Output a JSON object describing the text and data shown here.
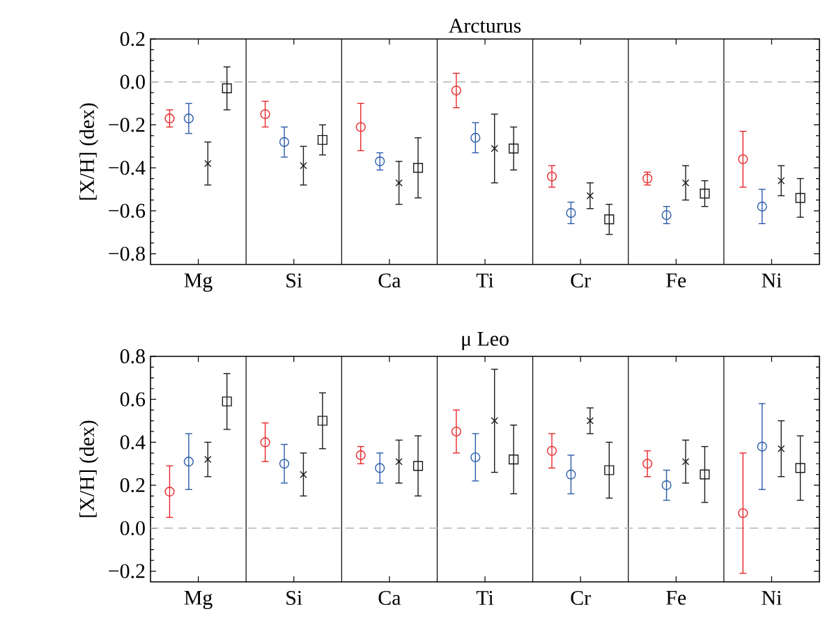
{
  "chart_data": [
    {
      "type": "scatter",
      "title": "Arcturus",
      "ylabel": "[X/H] (dex)",
      "categories": [
        "Mg",
        "Si",
        "Ca",
        "Ti",
        "Cr",
        "Fe",
        "Ni"
      ],
      "ylim": [
        -0.85,
        0.2
      ],
      "yticks": [
        {
          "value": 0.2,
          "label": "0.2"
        },
        {
          "value": 0,
          "label": "0.0"
        },
        {
          "value": -0.2,
          "label": "−0.2"
        },
        {
          "value": -0.4,
          "label": "−0.4"
        },
        {
          "value": -0.6,
          "label": "−0.6"
        },
        {
          "value": -0.8,
          "label": "−0.8"
        }
      ],
      "grid": "x",
      "ref_lines": [
        {
          "axis": "y",
          "value": 0,
          "color": "#b4b4b4",
          "line_style": "dashed"
        }
      ],
      "series": [
        {
          "color": "#e8262a",
          "marker": "circle",
          "values": [
            -0.17,
            -0.15,
            -0.21,
            -0.04,
            -0.44,
            -0.45,
            -0.36
          ],
          "errors": [
            0.04,
            0.06,
            0.11,
            0.08,
            0.05,
            0.03,
            0.13
          ]
        },
        {
          "color": "#2a5caa",
          "marker": "circle",
          "values": [
            -0.17,
            -0.28,
            -0.37,
            -0.26,
            -0.61,
            -0.62,
            -0.58
          ],
          "errors": [
            0.07,
            0.07,
            0.04,
            0.07,
            0.05,
            0.04,
            0.08
          ]
        },
        {
          "color": "#1a1a1a",
          "marker": "cross",
          "values": [
            -0.38,
            -0.39,
            -0.47,
            -0.31,
            -0.53,
            -0.47,
            -0.46
          ],
          "errors": [
            0.1,
            0.09,
            0.1,
            0.16,
            0.06,
            0.08,
            0.07
          ]
        },
        {
          "color": "#1a1a1a",
          "marker": "square",
          "values": [
            -0.03,
            -0.27,
            -0.4,
            -0.31,
            -0.64,
            -0.52,
            -0.54
          ],
          "errors": [
            0.1,
            0.07,
            0.14,
            0.1,
            0.07,
            0.06,
            0.09
          ]
        }
      ]
    },
    {
      "type": "scatter",
      "title": "μ Leo",
      "ylabel": "[X/H] (dex)",
      "categories": [
        "Mg",
        "Si",
        "Ca",
        "Ti",
        "Cr",
        "Fe",
        "Ni"
      ],
      "ylim": [
        -0.25,
        0.8
      ],
      "yticks": [
        {
          "value": 0.8,
          "label": "0.8"
        },
        {
          "value": 0.6,
          "label": "0.6"
        },
        {
          "value": 0.4,
          "label": "0.4"
        },
        {
          "value": 0.2,
          "label": "0.2"
        },
        {
          "value": 0,
          "label": "0.0"
        },
        {
          "value": -0.2,
          "label": "−0.2"
        }
      ],
      "grid": "x",
      "ref_lines": [
        {
          "axis": "y",
          "value": 0,
          "color": "#b4b4b4",
          "line_style": "dashed"
        }
      ],
      "series": [
        {
          "color": "#e8262a",
          "marker": "circle",
          "values": [
            0.17,
            0.4,
            0.34,
            0.45,
            0.36,
            0.3,
            0.07
          ],
          "errors": [
            0.12,
            0.09,
            0.04,
            0.1,
            0.08,
            0.06,
            0.28
          ]
        },
        {
          "color": "#2a5caa",
          "marker": "circle",
          "values": [
            0.31,
            0.3,
            0.28,
            0.33,
            0.25,
            0.2,
            0.38
          ],
          "errors": [
            0.13,
            0.09,
            0.07,
            0.11,
            0.09,
            0.07,
            0.2
          ]
        },
        {
          "color": "#1a1a1a",
          "marker": "cross",
          "values": [
            0.32,
            0.25,
            0.31,
            0.5,
            0.5,
            0.31,
            0.37
          ],
          "errors": [
            0.08,
            0.1,
            0.1,
            0.24,
            0.06,
            0.1,
            0.13
          ]
        },
        {
          "color": "#1a1a1a",
          "marker": "square",
          "values": [
            0.59,
            0.5,
            0.29,
            0.32,
            0.27,
            0.25,
            0.28
          ],
          "errors": [
            0.13,
            0.13,
            0.14,
            0.16,
            0.13,
            0.13,
            0.15
          ]
        }
      ]
    }
  ]
}
